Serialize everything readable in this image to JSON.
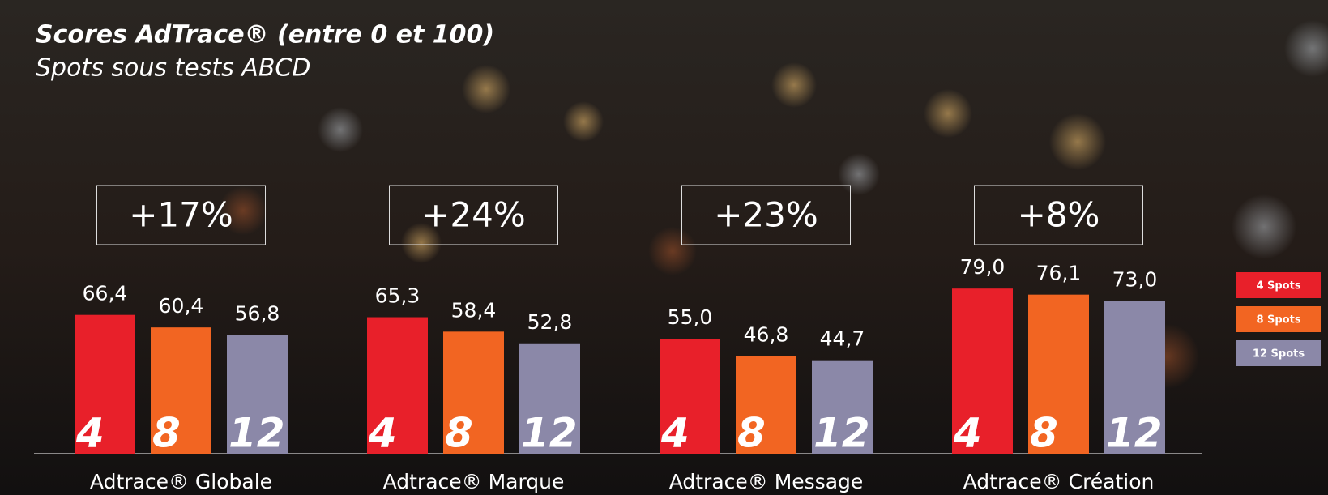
{
  "chart_data": {
    "type": "bar",
    "title": "Scores AdTrace® (entre 0 et 100)",
    "subtitle": "Spots sous tests ABCD",
    "categories": [
      "Adtrace® Globale",
      "Adtrace® Marque",
      "Adtrace® Message",
      "Adtrace® Création"
    ],
    "annotations": [
      "+17%",
      "+24%",
      "+23%",
      "+8%"
    ],
    "series": [
      {
        "name": "4 Spots",
        "bar_label": "4",
        "color": "#e8202a",
        "values": [
          66.4,
          65.3,
          55.0,
          79.0
        ],
        "value_labels": [
          "66,4",
          "65,3",
          "55,0",
          "79,0"
        ]
      },
      {
        "name": "8 Spots",
        "bar_label": "8",
        "color": "#f26522",
        "values": [
          60.4,
          58.4,
          46.8,
          76.1
        ],
        "value_labels": [
          "60,4",
          "58,4",
          "46,8",
          "76,1"
        ]
      },
      {
        "name": "12 Spots",
        "bar_label": "12",
        "color": "#8b88a8",
        "values": [
          56.8,
          52.8,
          44.7,
          73.0
        ],
        "value_labels": [
          "56,8",
          "52,8",
          "44,7",
          "73,0"
        ]
      }
    ],
    "legend": "right"
  }
}
